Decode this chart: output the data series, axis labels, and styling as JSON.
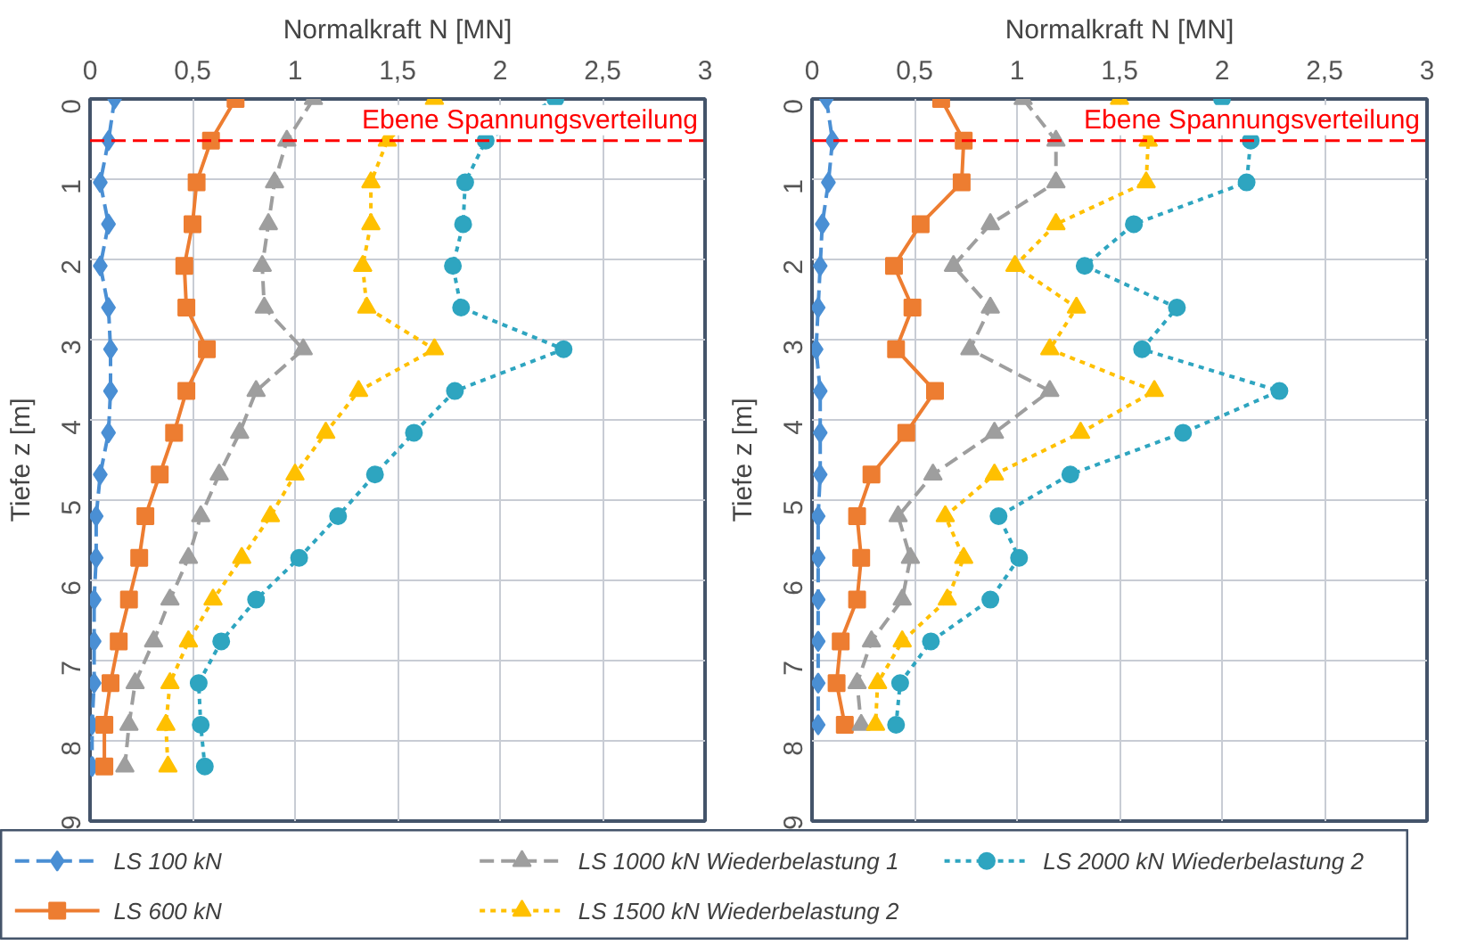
{
  "chart_data": [
    {
      "type": "line",
      "xlabel": "Normalkraft N [MN]",
      "ylabel": "Tiefe z [m]",
      "xlim": [
        0,
        3
      ],
      "ylim": [
        9,
        0
      ],
      "xticks": [
        0,
        {
          "value": 0.5,
          "label": "0,5"
        },
        1,
        {
          "value": 1.5,
          "label": "1,5"
        },
        2,
        {
          "value": 2.5,
          "label": "2,5"
        },
        3
      ],
      "yticks": [
        0,
        1,
        2,
        3,
        4,
        5,
        6,
        7,
        8,
        9
      ],
      "grid": true,
      "legend": "bottom",
      "ref_lines": [
        {
          "axis": "y",
          "value": 0.52,
          "label": "Ebene Spannungsverteilung",
          "color": "#ff0000",
          "line_style": "dashed"
        }
      ],
      "series": [
        {
          "name": "LS 100 kN",
          "color": "#4a8fd4",
          "marker": "diamond",
          "line_style": "dashed",
          "x": [
            0.12,
            0.09,
            0.05,
            0.09,
            0.05,
            0.09,
            0.1,
            0.1,
            0.09,
            0.05,
            0.03,
            0.03,
            0.02,
            0.02,
            0.02,
            0.01,
            0.01
          ],
          "values": [
            0,
            0.52,
            1.04,
            1.56,
            2.08,
            2.6,
            3.12,
            3.64,
            4.16,
            4.68,
            5.2,
            5.72,
            6.24,
            6.76,
            7.28,
            7.8,
            8.32
          ]
        },
        {
          "name": "LS 600 kN",
          "color": "#ed7d31",
          "marker": "square",
          "line_style": "solid",
          "x": [
            0.71,
            0.59,
            0.52,
            0.5,
            0.46,
            0.47,
            0.57,
            0.47,
            0.41,
            0.34,
            0.27,
            0.24,
            0.19,
            0.14,
            0.1,
            0.07,
            0.07
          ],
          "values": [
            0,
            0.52,
            1.04,
            1.56,
            2.08,
            2.6,
            3.12,
            3.64,
            4.16,
            4.68,
            5.2,
            5.72,
            6.24,
            6.76,
            7.28,
            7.8,
            8.32
          ]
        },
        {
          "name": "LS 1000 kN Wiederbelastung 1",
          "color": "#9e9e9e",
          "marker": "triangle",
          "line_style": "dashed",
          "x": [
            1.09,
            0.96,
            0.9,
            0.87,
            0.84,
            0.85,
            1.04,
            0.81,
            0.73,
            0.63,
            0.54,
            0.48,
            0.39,
            0.31,
            0.22,
            0.19,
            0.17
          ],
          "values": [
            0,
            0.52,
            1.04,
            1.56,
            2.08,
            2.6,
            3.12,
            3.64,
            4.16,
            4.68,
            5.2,
            5.72,
            6.24,
            6.76,
            7.28,
            7.8,
            8.32
          ]
        },
        {
          "name": "LS 1500 kN Wiederbelastung 2",
          "color": "#ffc000",
          "marker": "triangle",
          "line_style": "dotted",
          "x": [
            1.68,
            1.45,
            1.37,
            1.37,
            1.33,
            1.35,
            1.68,
            1.31,
            1.15,
            1.0,
            0.88,
            0.74,
            0.6,
            0.48,
            0.39,
            0.37,
            0.38
          ],
          "values": [
            0,
            0.52,
            1.04,
            1.56,
            2.08,
            2.6,
            3.12,
            3.64,
            4.16,
            4.68,
            5.2,
            5.72,
            6.24,
            6.76,
            7.28,
            7.8,
            8.32
          ]
        },
        {
          "name": "LS 2000 kN Wiederbelastung 2",
          "color": "#2ea5c0",
          "marker": "circle",
          "line_style": "dotted",
          "x": [
            2.27,
            1.93,
            1.83,
            1.82,
            1.77,
            1.81,
            2.31,
            1.78,
            1.58,
            1.39,
            1.21,
            1.02,
            0.81,
            0.64,
            0.53,
            0.54,
            0.56
          ],
          "values": [
            0,
            0.52,
            1.04,
            1.56,
            2.08,
            2.6,
            3.12,
            3.64,
            4.16,
            4.68,
            5.2,
            5.72,
            6.24,
            6.76,
            7.28,
            7.8,
            8.32
          ]
        }
      ]
    },
    {
      "type": "line",
      "xlabel": "Normalkraft N [MN]",
      "ylabel": "Tiefe z [m]",
      "xlim": [
        0,
        3
      ],
      "ylim": [
        9,
        0
      ],
      "xticks": [
        0,
        {
          "value": 0.5,
          "label": "0,5"
        },
        1,
        {
          "value": 1.5,
          "label": "1,5"
        },
        2,
        {
          "value": 2.5,
          "label": "2,5"
        },
        3
      ],
      "yticks": [
        0,
        1,
        2,
        3,
        4,
        5,
        6,
        7,
        8,
        9
      ],
      "grid": true,
      "ref_lines": [
        {
          "axis": "y",
          "value": 0.52,
          "label": "Ebene Spannungsverteilung",
          "color": "#ff0000",
          "line_style": "dashed"
        }
      ],
      "series": [
        {
          "color": "#4a8fd4",
          "marker": "diamond",
          "line_style": "dashed",
          "x": [
            0.07,
            0.1,
            0.08,
            0.05,
            0.04,
            0.03,
            0.02,
            0.04,
            0.04,
            0.04,
            0.03,
            0.03,
            0.03,
            0.03,
            0.03,
            0.03
          ],
          "values": [
            0,
            0.52,
            1.04,
            1.56,
            2.08,
            2.6,
            3.12,
            3.64,
            4.16,
            4.68,
            5.2,
            5.72,
            6.24,
            6.76,
            7.28,
            7.8
          ]
        },
        {
          "color": "#ed7d31",
          "marker": "square",
          "line_style": "solid",
          "x": [
            0.63,
            0.74,
            0.73,
            0.53,
            0.4,
            0.49,
            0.41,
            0.6,
            0.46,
            0.29,
            0.22,
            0.24,
            0.22,
            0.14,
            0.12,
            0.16
          ],
          "values": [
            0,
            0.52,
            1.04,
            1.56,
            2.08,
            2.6,
            3.12,
            3.64,
            4.16,
            4.68,
            5.2,
            5.72,
            6.24,
            6.76,
            7.28,
            7.8
          ]
        },
        {
          "color": "#9e9e9e",
          "marker": "triangle",
          "line_style": "dashed",
          "x": [
            1.03,
            1.19,
            1.19,
            0.87,
            0.69,
            0.87,
            0.77,
            1.16,
            0.89,
            0.59,
            0.42,
            0.48,
            0.44,
            0.29,
            0.22,
            0.24
          ],
          "values": [
            0,
            0.52,
            1.04,
            1.56,
            2.08,
            2.6,
            3.12,
            3.64,
            4.16,
            4.68,
            5.2,
            5.72,
            6.24,
            6.76,
            7.28,
            7.8
          ]
        },
        {
          "color": "#ffc000",
          "marker": "triangle",
          "line_style": "dotted",
          "x": [
            1.5,
            1.64,
            1.63,
            1.19,
            0.99,
            1.29,
            1.16,
            1.67,
            1.31,
            0.89,
            0.65,
            0.74,
            0.66,
            0.44,
            0.32,
            0.31
          ],
          "values": [
            0,
            0.52,
            1.04,
            1.56,
            2.08,
            2.6,
            3.12,
            3.64,
            4.16,
            4.68,
            5.2,
            5.72,
            6.24,
            6.76,
            7.28,
            7.8
          ]
        },
        {
          "color": "#2ea5c0",
          "marker": "circle",
          "line_style": "dotted",
          "x": [
            2.0,
            2.14,
            2.12,
            1.57,
            1.33,
            1.78,
            1.61,
            2.28,
            1.81,
            1.26,
            0.91,
            1.01,
            0.87,
            0.58,
            0.43,
            0.41
          ],
          "values": [
            0,
            0.52,
            1.04,
            1.56,
            2.08,
            2.6,
            3.12,
            3.64,
            4.16,
            4.68,
            5.2,
            5.72,
            6.24,
            6.76,
            7.28,
            7.8
          ]
        }
      ]
    }
  ]
}
